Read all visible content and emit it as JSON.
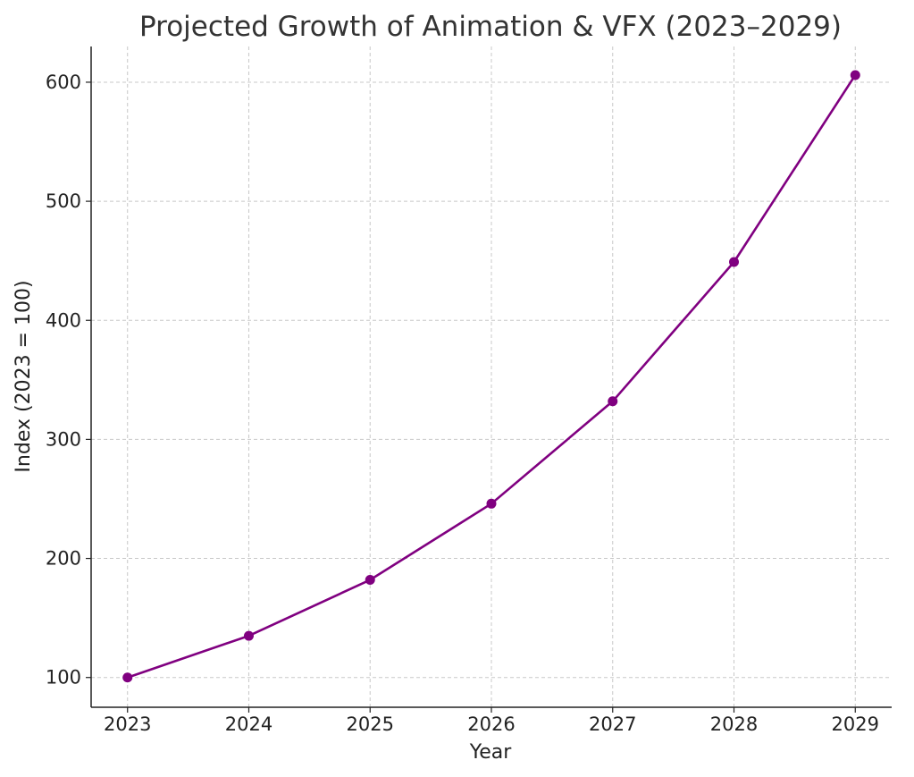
{
  "chart_data": {
    "type": "line",
    "title": "Projected Growth of Animation & VFX (2023–2029)",
    "xlabel": "Year",
    "ylabel": "Index (2023 = 100)",
    "x": [
      2023,
      2024,
      2025,
      2026,
      2027,
      2028,
      2029
    ],
    "series": [
      {
        "values": [
          100,
          135,
          182,
          246,
          332,
          449,
          606
        ]
      }
    ],
    "xticks": [
      "2023",
      "2024",
      "2025",
      "2026",
      "2027",
      "2028",
      "2029"
    ],
    "yticks": [
      100,
      200,
      300,
      400,
      500,
      600
    ],
    "xlim": [
      2022.7,
      2029.3
    ],
    "ylim": [
      75,
      630
    ],
    "grid": true,
    "legend": "none",
    "colors": {
      "line": "#800080",
      "marker": "#800080",
      "grid": "#c8c8c8",
      "axis": "#222222"
    }
  }
}
